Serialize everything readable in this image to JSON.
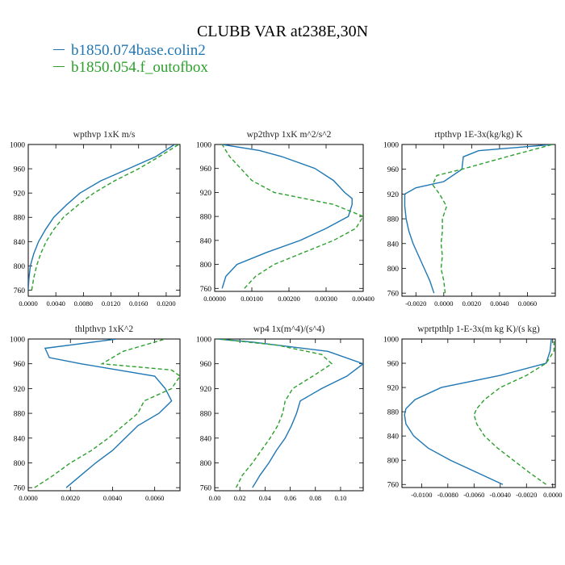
{
  "figure": {
    "title": "CLUBB VAR at238E,30N",
    "legend": [
      {
        "label": "b1850.074base.colin2",
        "color": "#1f77b4"
      },
      {
        "label": "b1850.054.f_outofbox",
        "color": "#2ca02c"
      }
    ]
  },
  "chart_data": [
    {
      "type": "line",
      "title": "wpthvp  1xK m/s",
      "xlim": [
        0,
        0.022
      ],
      "ylim": [
        1000,
        750
      ],
      "xticks": [
        0,
        0.004,
        0.008,
        0.012,
        0.016,
        0.02
      ],
      "xticklabels": [
        "0.0000",
        "0.0040",
        "0.0080",
        "0.0120",
        "0.0160",
        "0.0200"
      ],
      "yticks": [
        760,
        800,
        840,
        880,
        920,
        960,
        1000
      ],
      "series": [
        {
          "color": "#1f77b4",
          "dash": "",
          "y": [
            760,
            780,
            800,
            820,
            840,
            860,
            880,
            900,
            920,
            940,
            960,
            980,
            1000
          ],
          "x": [
            0,
            0.0001,
            0.0003,
            0.0008,
            0.0015,
            0.0025,
            0.0037,
            0.0055,
            0.0075,
            0.0105,
            0.0145,
            0.0185,
            0.0212
          ]
        },
        {
          "color": "#2ca02c",
          "dash": "5,3",
          "y": [
            760,
            780,
            800,
            820,
            840,
            860,
            880,
            900,
            920,
            940,
            960,
            980,
            1000
          ],
          "x": [
            0.0005,
            0.0008,
            0.0012,
            0.0018,
            0.0026,
            0.0037,
            0.0051,
            0.0072,
            0.0095,
            0.0125,
            0.016,
            0.019,
            0.0218
          ]
        }
      ]
    },
    {
      "type": "line",
      "title": "wp2thvp  1xK m^2/s^2",
      "xlim": [
        0,
        0.004
      ],
      "ylim": [
        1000,
        755
      ],
      "xticks": [
        0,
        0.001,
        0.002,
        0.003,
        0.004
      ],
      "xticklabels": [
        "0.00000",
        "0.00100",
        "0.00200",
        "0.00300",
        "0.00400"
      ],
      "yticks": [
        760,
        800,
        840,
        880,
        920,
        960,
        1000
      ],
      "series": [
        {
          "color": "#1f77b4",
          "dash": "",
          "y": [
            760,
            780,
            800,
            820,
            840,
            860,
            880,
            900,
            910,
            920,
            940,
            960,
            980,
            990,
            1000
          ],
          "x": [
            0.0002,
            0.0003,
            0.0006,
            0.0014,
            0.0023,
            0.003,
            0.0036,
            0.0037,
            0.0037,
            0.0035,
            0.0032,
            0.0027,
            0.0018,
            0.0012,
            0.0002
          ]
        },
        {
          "color": "#2ca02c",
          "dash": "5,3",
          "y": [
            760,
            780,
            800,
            820,
            840,
            860,
            880,
            900,
            920,
            940,
            960,
            980,
            1000
          ],
          "x": [
            0.0008,
            0.0011,
            0.0016,
            0.0024,
            0.0032,
            0.0038,
            0.004,
            0.0032,
            0.0016,
            0.001,
            0.0007,
            0.0004,
            0.0002
          ]
        }
      ]
    },
    {
      "type": "line",
      "title": "rtpthvp  1E-3x(kg/kg) K",
      "xlim": [
        -0.003,
        0.008
      ],
      "ylim": [
        1000,
        755
      ],
      "xticks": [
        -0.002,
        0,
        0.002,
        0.004,
        0.006
      ],
      "xticklabels": [
        "-0.0020",
        "0.0000",
        "0.0020",
        "0.0040",
        "0.0060"
      ],
      "yticks": [
        760,
        800,
        840,
        880,
        920,
        960,
        1000
      ],
      "series": [
        {
          "color": "#1f77b4",
          "dash": "",
          "y": [
            760,
            780,
            800,
            820,
            840,
            860,
            880,
            900,
            920,
            930,
            940,
            960,
            980,
            990,
            1000
          ],
          "x": [
            -0.0007,
            -0.001,
            -0.0014,
            -0.0018,
            -0.0022,
            -0.0025,
            -0.0027,
            -0.0028,
            -0.0028,
            -0.002,
            0,
            0.0013,
            0.0014,
            0.0025,
            0.0078
          ]
        },
        {
          "color": "#2ca02c",
          "dash": "5,3",
          "y": [
            760,
            780,
            800,
            820,
            840,
            860,
            880,
            900,
            920,
            935,
            950,
            960,
            980,
            1000
          ],
          "x": [
            0.0001,
            0,
            -0.0002,
            -0.0001,
            -0.0002,
            -0.0001,
            -0.0001,
            0.0002,
            -0.0003,
            -0.0008,
            -0.0005,
            0.0013,
            0.0045,
            0.0078
          ]
        }
      ]
    },
    {
      "type": "line",
      "title": "thlpthvp  1xK^2",
      "xlim": [
        0,
        0.0072
      ],
      "ylim": [
        1000,
        755
      ],
      "xticks": [
        0,
        0.002,
        0.004,
        0.006
      ],
      "xticklabels": [
        "0.0000",
        "0.0020",
        "0.0040",
        "0.0060"
      ],
      "yticks": [
        760,
        800,
        840,
        880,
        920,
        960,
        1000
      ],
      "series": [
        {
          "color": "#1f77b4",
          "dash": "",
          "y": [
            760,
            780,
            800,
            820,
            840,
            860,
            880,
            900,
            920,
            940,
            960,
            970,
            985,
            1000
          ],
          "x": [
            0.0018,
            0.0025,
            0.0032,
            0.004,
            0.0046,
            0.0052,
            0.0062,
            0.0068,
            0.0065,
            0.006,
            0.0025,
            0.001,
            0.0008,
            0.0042
          ]
        },
        {
          "color": "#2ca02c",
          "dash": "5,3",
          "y": [
            760,
            780,
            800,
            820,
            840,
            860,
            880,
            900,
            920,
            940,
            950,
            960,
            980,
            1000
          ],
          "x": [
            0.0003,
            0.0012,
            0.002,
            0.003,
            0.0038,
            0.0045,
            0.0052,
            0.0055,
            0.0068,
            0.0072,
            0.0068,
            0.0035,
            0.0045,
            0.0065
          ]
        }
      ]
    },
    {
      "type": "line",
      "title": "wp4  1x(m^4)/(s^4)",
      "xlim": [
        0,
        0.118
      ],
      "ylim": [
        1000,
        755
      ],
      "xticks": [
        0,
        0.02,
        0.04,
        0.06,
        0.08,
        0.1
      ],
      "xticklabels": [
        "0.00",
        "0.02",
        "0.04",
        "0.06",
        "0.08",
        "0.10"
      ],
      "yticks": [
        760,
        800,
        840,
        880,
        920,
        960,
        1000
      ],
      "series": [
        {
          "color": "#1f77b4",
          "dash": "",
          "y": [
            760,
            780,
            800,
            820,
            840,
            860,
            880,
            900,
            920,
            940,
            960,
            980,
            995,
            1000
          ],
          "x": [
            0.03,
            0.036,
            0.043,
            0.049,
            0.056,
            0.061,
            0.065,
            0.068,
            0.085,
            0.105,
            0.118,
            0.09,
            0.03,
            0.002
          ]
        },
        {
          "color": "#2ca02c",
          "dash": "5,3",
          "y": [
            760,
            780,
            800,
            820,
            840,
            860,
            880,
            900,
            920,
            940,
            960,
            975,
            990,
            1000
          ],
          "x": [
            0.017,
            0.022,
            0.03,
            0.037,
            0.044,
            0.05,
            0.054,
            0.056,
            0.062,
            0.078,
            0.093,
            0.085,
            0.05,
            0.003
          ]
        }
      ]
    },
    {
      "type": "line",
      "title": "wprtpthlp  1-E-3x(m kg K)/(s kg)",
      "xlim": [
        -0.0115,
        0.0002
      ],
      "ylim": [
        1000,
        755
      ],
      "xticks": [
        -0.01,
        -0.008,
        -0.006,
        -0.004,
        -0.002,
        0
      ],
      "xticklabels": [
        "-0.0100",
        "-0.0080",
        "-0.0060",
        "-0.0040",
        "-0.0020",
        "0.0000"
      ],
      "yticks": [
        760,
        800,
        840,
        880,
        920,
        960,
        1000
      ],
      "series": [
        {
          "color": "#1f77b4",
          "dash": "",
          "y": [
            760,
            780,
            800,
            820,
            840,
            860,
            875,
            885,
            900,
            920,
            940,
            960,
            980,
            1000
          ],
          "x": [
            -0.0038,
            -0.0058,
            -0.0078,
            -0.0095,
            -0.0106,
            -0.0112,
            -0.0113,
            -0.0112,
            -0.0105,
            -0.0085,
            -0.004,
            -0.0005,
            -0.0002,
            -0.0001
          ]
        },
        {
          "color": "#2ca02c",
          "dash": "5,3",
          "y": [
            760,
            780,
            800,
            820,
            840,
            860,
            875,
            885,
            900,
            920,
            940,
            960,
            980,
            1000
          ],
          "x": [
            -0.0005,
            -0.0018,
            -0.003,
            -0.0042,
            -0.0052,
            -0.0058,
            -0.006,
            -0.0058,
            -0.0052,
            -0.004,
            -0.002,
            -0.0005,
            0.0001,
            0.0001
          ]
        }
      ]
    }
  ]
}
